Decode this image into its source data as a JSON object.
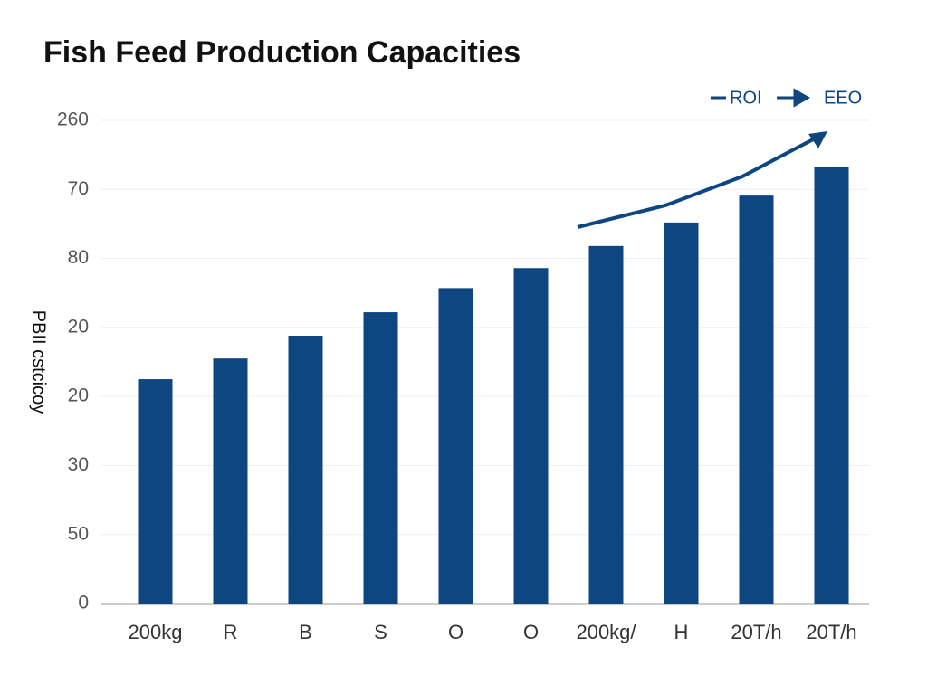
{
  "chart_data": {
    "type": "bar",
    "title": "Fish Feed Production Capacities",
    "y_label": "PBII cstcicoy",
    "legend": [
      "ROI",
      "EEO"
    ],
    "categories": [
      "200kg",
      "R",
      "B",
      "S",
      "O",
      "O",
      "200kg/",
      "H",
      "20T/h",
      "20T/h"
    ],
    "values": [
      3.25,
      3.55,
      3.88,
      4.22,
      4.57,
      4.86,
      5.18,
      5.52,
      5.91,
      6.32
    ],
    "color": "#0d4680",
    "ylim": [
      0,
      7
    ],
    "yticks": [
      0,
      {
        "value": 1,
        "label": "50"
      },
      {
        "value": 2,
        "label": "30"
      },
      {
        "value": 3,
        "label": "20"
      },
      {
        "value": 4,
        "label": "20"
      },
      {
        "value": 5,
        "label": "80"
      },
      {
        "value": 6,
        "label": "70"
      },
      {
        "value": 7,
        "label": "260"
      }
    ],
    "grid": true
  }
}
